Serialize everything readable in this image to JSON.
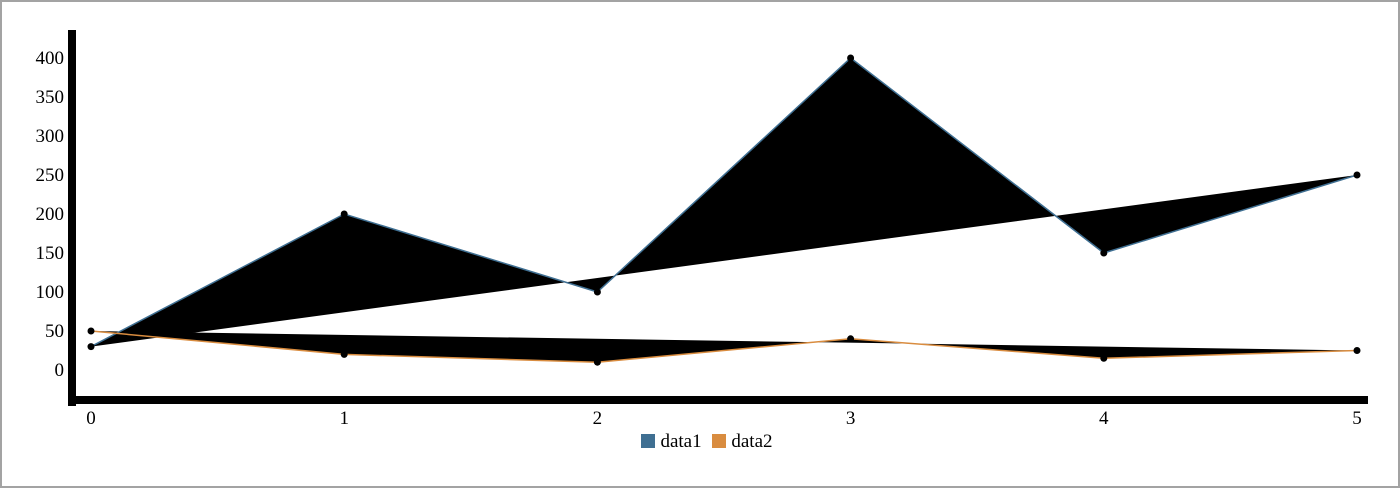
{
  "chart_data": {
    "type": "area",
    "x": [
      0,
      1,
      2,
      3,
      4,
      5
    ],
    "x_ticks": [
      "0",
      "1",
      "2",
      "3",
      "4",
      "5"
    ],
    "y_ticks": [
      "0",
      "50",
      "100",
      "150",
      "200",
      "250",
      "300",
      "350",
      "400"
    ],
    "ylim": [
      -30,
      430
    ],
    "xlim": [
      0,
      5
    ],
    "grid": false,
    "legend_position": "bottom-center",
    "series": [
      {
        "name": "data1",
        "values": [
          30,
          200,
          100,
          400,
          150,
          250
        ],
        "color": "#3f6f92"
      },
      {
        "name": "data2",
        "values": [
          50,
          20,
          10,
          40,
          15,
          25
        ],
        "color": "#d98c3f"
      }
    ],
    "area_fill_color": "#000000",
    "axis_color": "#000000",
    "title": "",
    "xlabel": "",
    "ylabel": ""
  }
}
